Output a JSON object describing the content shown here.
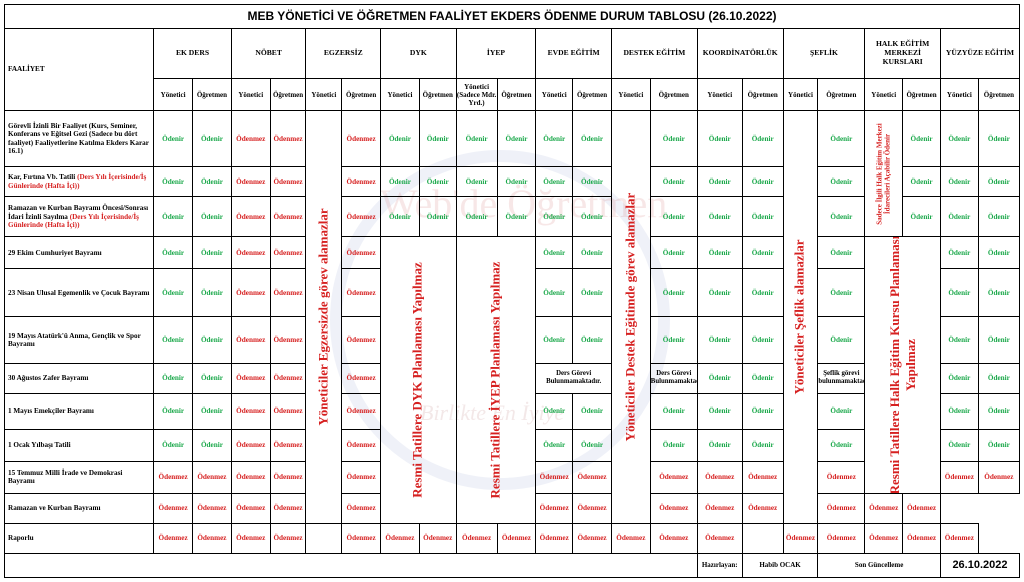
{
  "title": "MEB YÖNETİCİ VE ÖĞRETMEN FAALİYET EKDERS ÖDENME DURUM  TABLOSU (26.10.2022)",
  "col_faaliyet": "FAALİYET",
  "groups": {
    "ek_ders": "EK DERS",
    "nobet": "NÖBET",
    "egzersiz": "EGZERSİZ",
    "dyk": "DYK",
    "iyep": "İYEP",
    "evde": "EVDE EĞİTİM",
    "destek": "DESTEK EĞİTİM",
    "koord": "KOORDİNATÖRLÜK",
    "seflik": "ŞEFLİK",
    "halk": "HALK EĞİTİM MERKEZİ KURSLARI",
    "yuz": "YÜZYÜZE EĞİTİM"
  },
  "sub": {
    "yonetici": "Yönetici",
    "ogretmen": "Öğretmen",
    "iyep_yonetici": "Yönetici (Sadece Mdr. Yrd.)"
  },
  "values": {
    "g": "Ödenir",
    "r": "Ödenmez"
  },
  "activities": {
    "a1": "Görevli İzinli Bir Faaliyet (Kurs, Seminer, Konferans ve Eğitsel Gezi (Sadece bu dört faaliyet) Faaliyetlerine Katılma Ekders Karar 16.1)",
    "a2": "Kar, Fırtına Vb. Tatili",
    "a2_red": "(Ders Yılı İçerisinde/İş Günlerinde (Hafta İçi))",
    "a3": "Ramazan ve Kurban Bayramı Öncesi/Sonrası İdari İzinli Sayılma",
    "a3_red": "(Ders Yılı İçerisinde/İş Günlerinde (Hafta İçi))",
    "a4": "29 Ekim Cumhuriyet Bayramı",
    "a5": "23 Nisan Ulusal Egemenlik ve Çocuk Bayramı",
    "a6": "19 Mayıs Atatürk'ü Anma, Gençlik ve Spor Bayramı",
    "a7": "30 Ağustos Zafer Bayramı",
    "a8": "1 Mayıs Emekçiler Bayramı",
    "a9": "1 Ocak Yılbaşı Tatili",
    "a10": "15 Temmuz Milli İrade ve Demokrasi Bayramı",
    "a11": "Ramazan ve Kurban Bayramı",
    "a12": "Raporlu"
  },
  "vertical": {
    "egzersiz": "Yöneticiler Egzersizde görev alamazlar",
    "dyk": "Resmi Tatillere DYK Planlaması Yapılmaz",
    "iyep": "Resmi Tatillere İYEP Planlaması Yapılmaz",
    "destek": "Yöneticiler Destek Eğitimde görev alamazlar",
    "seflik": "Yöneticiler Şeflik alamazlar",
    "halk_small": "Sadece İlgili Halk Eğitim Merkezi İdarecileri Açabilir Ödenir",
    "halk": "Resmi Tatillere Halk Eğitim Kursu Planlaması Yapılmaz"
  },
  "notes": {
    "evde": "Ders Görevi Bulunmamaktadır.",
    "destek": "Ders Görevi Bulunmamaktadır.",
    "seflik": "Şeflik görevi bulunmamaktadır."
  },
  "footer": {
    "hazirlayan_label": "Hazırlayan:",
    "hazirlayan": "Habib OCAK",
    "son_label": "Son Güncelleme",
    "son_date": "26.10.2022"
  },
  "watermark": {
    "top": "Web'de Öğretmen",
    "bottom": "Birlikte En İyiye"
  },
  "colors": {
    "green": "#1aa84a",
    "red": "#d62020"
  }
}
